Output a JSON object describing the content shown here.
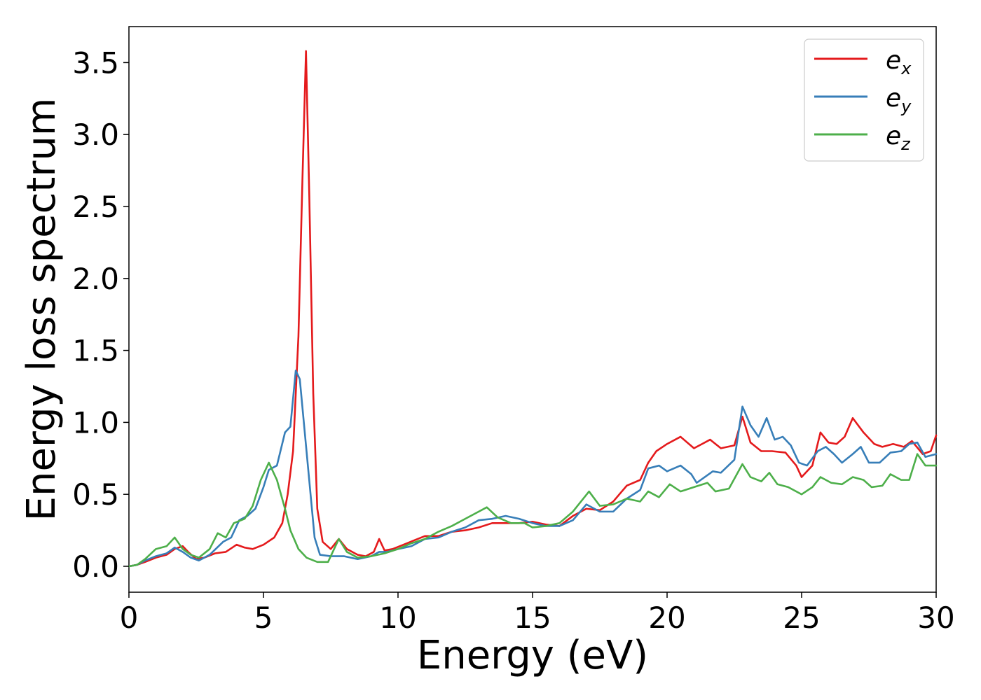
{
  "chart_data": {
    "type": "line",
    "title": "",
    "xlabel": "Energy (eV)",
    "ylabel": "Energy loss spectrum",
    "xlim": [
      0,
      30
    ],
    "ylim": [
      -0.18,
      3.75
    ],
    "x_ticks": [
      0,
      5,
      10,
      15,
      20,
      25,
      30
    ],
    "x_tick_labels": [
      "0",
      "5",
      "10",
      "15",
      "20",
      "25",
      "30"
    ],
    "y_ticks": [
      0.0,
      0.5,
      1.0,
      1.5,
      2.0,
      2.5,
      3.0,
      3.5
    ],
    "y_tick_labels": [
      "0.0",
      "0.5",
      "1.0",
      "1.5",
      "2.0",
      "2.5",
      "3.0",
      "3.5"
    ],
    "grid": false,
    "legend_position": "top-right",
    "series": [
      {
        "name": "e_x",
        "label_base": "e",
        "label_sub": "x",
        "color": "#e41a1c",
        "points": [
          [
            0,
            0.0
          ],
          [
            0.3,
            0.01
          ],
          [
            0.6,
            0.03
          ],
          [
            1.0,
            0.06
          ],
          [
            1.4,
            0.08
          ],
          [
            1.7,
            0.12
          ],
          [
            2.0,
            0.14
          ],
          [
            2.2,
            0.1
          ],
          [
            2.5,
            0.05
          ],
          [
            2.8,
            0.06
          ],
          [
            3.2,
            0.09
          ],
          [
            3.6,
            0.1
          ],
          [
            4.0,
            0.15
          ],
          [
            4.3,
            0.13
          ],
          [
            4.6,
            0.12
          ],
          [
            5.0,
            0.15
          ],
          [
            5.4,
            0.2
          ],
          [
            5.7,
            0.3
          ],
          [
            5.9,
            0.5
          ],
          [
            6.1,
            0.8
          ],
          [
            6.3,
            1.6
          ],
          [
            6.45,
            2.7
          ],
          [
            6.58,
            3.58
          ],
          [
            6.7,
            2.6
          ],
          [
            6.85,
            1.2
          ],
          [
            7.0,
            0.4
          ],
          [
            7.2,
            0.17
          ],
          [
            7.5,
            0.12
          ],
          [
            7.8,
            0.19
          ],
          [
            8.1,
            0.12
          ],
          [
            8.5,
            0.08
          ],
          [
            8.8,
            0.07
          ],
          [
            9.1,
            0.1
          ],
          [
            9.3,
            0.19
          ],
          [
            9.5,
            0.11
          ],
          [
            9.8,
            0.12
          ],
          [
            10.2,
            0.15
          ],
          [
            10.6,
            0.18
          ],
          [
            11.0,
            0.21
          ],
          [
            11.5,
            0.21
          ],
          [
            12.0,
            0.24
          ],
          [
            12.5,
            0.25
          ],
          [
            13.0,
            0.27
          ],
          [
            13.5,
            0.3
          ],
          [
            14.0,
            0.3
          ],
          [
            14.5,
            0.3
          ],
          [
            15.0,
            0.31
          ],
          [
            15.5,
            0.29
          ],
          [
            16.0,
            0.28
          ],
          [
            16.5,
            0.35
          ],
          [
            17.0,
            0.4
          ],
          [
            17.5,
            0.39
          ],
          [
            18.0,
            0.45
          ],
          [
            18.5,
            0.56
          ],
          [
            19.0,
            0.6
          ],
          [
            19.3,
            0.72
          ],
          [
            19.6,
            0.8
          ],
          [
            20.0,
            0.85
          ],
          [
            20.5,
            0.9
          ],
          [
            21.0,
            0.82
          ],
          [
            21.3,
            0.85
          ],
          [
            21.6,
            0.88
          ],
          [
            22.0,
            0.82
          ],
          [
            22.5,
            0.84
          ],
          [
            22.8,
            1.04
          ],
          [
            23.1,
            0.86
          ],
          [
            23.5,
            0.8
          ],
          [
            23.9,
            0.8
          ],
          [
            24.4,
            0.79
          ],
          [
            24.8,
            0.7
          ],
          [
            25.0,
            0.62
          ],
          [
            25.4,
            0.7
          ],
          [
            25.7,
            0.93
          ],
          [
            26.0,
            0.86
          ],
          [
            26.3,
            0.85
          ],
          [
            26.6,
            0.9
          ],
          [
            26.9,
            1.03
          ],
          [
            27.3,
            0.93
          ],
          [
            27.7,
            0.85
          ],
          [
            28.0,
            0.83
          ],
          [
            28.4,
            0.85
          ],
          [
            28.8,
            0.83
          ],
          [
            29.1,
            0.87
          ],
          [
            29.5,
            0.78
          ],
          [
            29.8,
            0.8
          ],
          [
            30.0,
            0.91
          ]
        ]
      },
      {
        "name": "e_y",
        "label_base": "e",
        "label_sub": "y",
        "color": "#377eb8",
        "points": [
          [
            0,
            0.0
          ],
          [
            0.3,
            0.01
          ],
          [
            0.6,
            0.04
          ],
          [
            1.0,
            0.07
          ],
          [
            1.4,
            0.09
          ],
          [
            1.7,
            0.13
          ],
          [
            2.0,
            0.1
          ],
          [
            2.3,
            0.06
          ],
          [
            2.6,
            0.04
          ],
          [
            3.0,
            0.08
          ],
          [
            3.5,
            0.17
          ],
          [
            3.8,
            0.2
          ],
          [
            4.1,
            0.32
          ],
          [
            4.4,
            0.35
          ],
          [
            4.7,
            0.4
          ],
          [
            5.0,
            0.55
          ],
          [
            5.2,
            0.67
          ],
          [
            5.5,
            0.7
          ],
          [
            5.8,
            0.93
          ],
          [
            6.0,
            0.97
          ],
          [
            6.2,
            1.36
          ],
          [
            6.35,
            1.3
          ],
          [
            6.5,
            1.0
          ],
          [
            6.7,
            0.6
          ],
          [
            6.9,
            0.2
          ],
          [
            7.1,
            0.08
          ],
          [
            7.5,
            0.07
          ],
          [
            8.0,
            0.07
          ],
          [
            8.5,
            0.05
          ],
          [
            9.0,
            0.07
          ],
          [
            9.3,
            0.1
          ],
          [
            9.6,
            0.1
          ],
          [
            10.0,
            0.12
          ],
          [
            10.5,
            0.14
          ],
          [
            11.0,
            0.19
          ],
          [
            11.5,
            0.2
          ],
          [
            12.0,
            0.24
          ],
          [
            12.5,
            0.27
          ],
          [
            13.0,
            0.32
          ],
          [
            13.5,
            0.33
          ],
          [
            14.0,
            0.35
          ],
          [
            14.5,
            0.33
          ],
          [
            15.0,
            0.3
          ],
          [
            15.5,
            0.28
          ],
          [
            16.0,
            0.28
          ],
          [
            16.5,
            0.32
          ],
          [
            17.0,
            0.43
          ],
          [
            17.5,
            0.38
          ],
          [
            18.0,
            0.38
          ],
          [
            18.5,
            0.47
          ],
          [
            19.0,
            0.53
          ],
          [
            19.3,
            0.68
          ],
          [
            19.7,
            0.7
          ],
          [
            20.0,
            0.66
          ],
          [
            20.5,
            0.7
          ],
          [
            20.9,
            0.64
          ],
          [
            21.1,
            0.58
          ],
          [
            21.4,
            0.62
          ],
          [
            21.7,
            0.66
          ],
          [
            22.0,
            0.65
          ],
          [
            22.5,
            0.74
          ],
          [
            22.8,
            1.11
          ],
          [
            23.1,
            0.98
          ],
          [
            23.4,
            0.9
          ],
          [
            23.7,
            1.03
          ],
          [
            24.0,
            0.88
          ],
          [
            24.3,
            0.9
          ],
          [
            24.6,
            0.84
          ],
          [
            24.9,
            0.72
          ],
          [
            25.2,
            0.7
          ],
          [
            25.6,
            0.8
          ],
          [
            25.9,
            0.83
          ],
          [
            26.2,
            0.78
          ],
          [
            26.5,
            0.72
          ],
          [
            26.9,
            0.78
          ],
          [
            27.2,
            0.83
          ],
          [
            27.5,
            0.72
          ],
          [
            27.9,
            0.72
          ],
          [
            28.3,
            0.79
          ],
          [
            28.7,
            0.8
          ],
          [
            29.0,
            0.85
          ],
          [
            29.3,
            0.86
          ],
          [
            29.6,
            0.76
          ],
          [
            30.0,
            0.78
          ]
        ]
      },
      {
        "name": "e_z",
        "label_base": "e",
        "label_sub": "z",
        "color": "#4daf4a",
        "points": [
          [
            0,
            0.0
          ],
          [
            0.3,
            0.01
          ],
          [
            0.6,
            0.05
          ],
          [
            1.0,
            0.12
          ],
          [
            1.4,
            0.14
          ],
          [
            1.7,
            0.2
          ],
          [
            2.0,
            0.12
          ],
          [
            2.3,
            0.08
          ],
          [
            2.6,
            0.06
          ],
          [
            3.0,
            0.12
          ],
          [
            3.3,
            0.23
          ],
          [
            3.6,
            0.2
          ],
          [
            3.9,
            0.3
          ],
          [
            4.3,
            0.33
          ],
          [
            4.6,
            0.42
          ],
          [
            4.9,
            0.6
          ],
          [
            5.2,
            0.72
          ],
          [
            5.5,
            0.6
          ],
          [
            5.8,
            0.4
          ],
          [
            6.0,
            0.25
          ],
          [
            6.3,
            0.12
          ],
          [
            6.6,
            0.06
          ],
          [
            7.0,
            0.03
          ],
          [
            7.4,
            0.03
          ],
          [
            7.8,
            0.19
          ],
          [
            8.1,
            0.1
          ],
          [
            8.5,
            0.06
          ],
          [
            9.0,
            0.07
          ],
          [
            9.5,
            0.09
          ],
          [
            10.0,
            0.12
          ],
          [
            10.5,
            0.16
          ],
          [
            11.0,
            0.19
          ],
          [
            11.5,
            0.24
          ],
          [
            12.0,
            0.28
          ],
          [
            12.5,
            0.33
          ],
          [
            13.0,
            0.38
          ],
          [
            13.3,
            0.41
          ],
          [
            13.7,
            0.34
          ],
          [
            14.2,
            0.3
          ],
          [
            14.7,
            0.3
          ],
          [
            15.0,
            0.27
          ],
          [
            15.5,
            0.28
          ],
          [
            16.0,
            0.3
          ],
          [
            16.5,
            0.38
          ],
          [
            17.1,
            0.52
          ],
          [
            17.5,
            0.42
          ],
          [
            18.0,
            0.43
          ],
          [
            18.5,
            0.47
          ],
          [
            19.0,
            0.45
          ],
          [
            19.3,
            0.52
          ],
          [
            19.7,
            0.48
          ],
          [
            20.1,
            0.57
          ],
          [
            20.5,
            0.52
          ],
          [
            21.0,
            0.55
          ],
          [
            21.5,
            0.58
          ],
          [
            21.8,
            0.52
          ],
          [
            22.3,
            0.54
          ],
          [
            22.8,
            0.71
          ],
          [
            23.1,
            0.62
          ],
          [
            23.5,
            0.59
          ],
          [
            23.8,
            0.65
          ],
          [
            24.1,
            0.57
          ],
          [
            24.5,
            0.55
          ],
          [
            25.0,
            0.5
          ],
          [
            25.4,
            0.55
          ],
          [
            25.7,
            0.62
          ],
          [
            26.1,
            0.58
          ],
          [
            26.5,
            0.57
          ],
          [
            26.9,
            0.62
          ],
          [
            27.3,
            0.6
          ],
          [
            27.6,
            0.55
          ],
          [
            28.0,
            0.56
          ],
          [
            28.3,
            0.64
          ],
          [
            28.7,
            0.6
          ],
          [
            29.0,
            0.6
          ],
          [
            29.3,
            0.78
          ],
          [
            29.6,
            0.7
          ],
          [
            30.0,
            0.7
          ]
        ]
      }
    ]
  }
}
